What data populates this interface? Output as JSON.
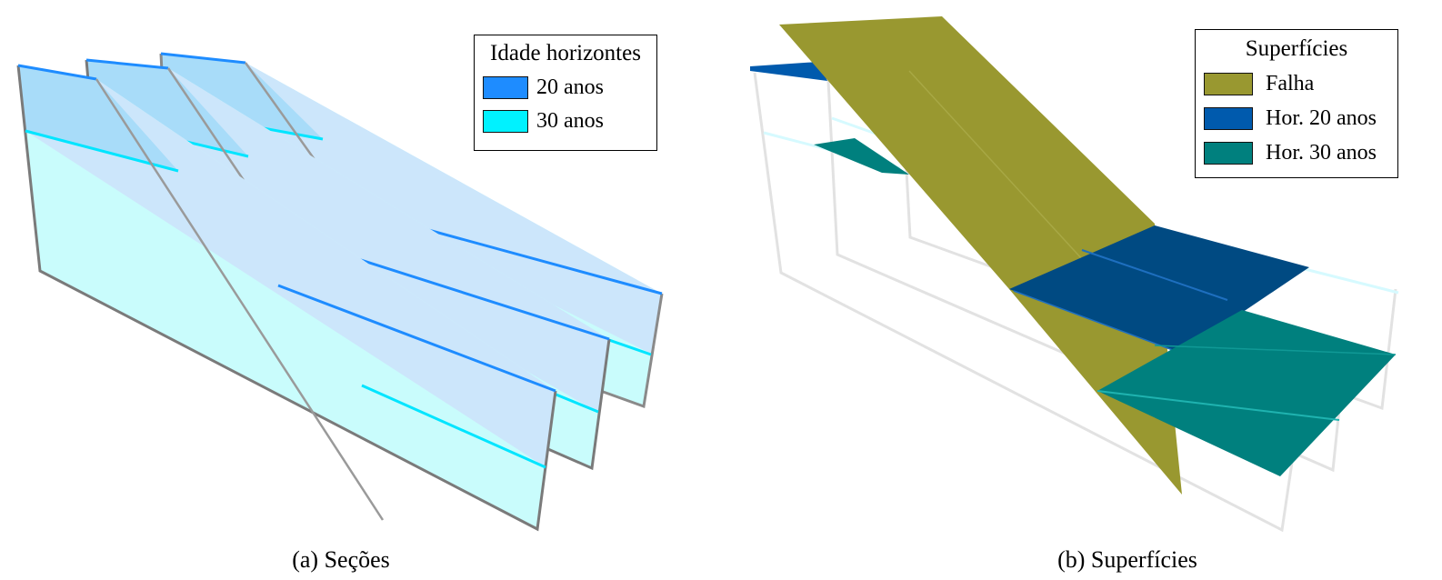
{
  "panel_a": {
    "caption": "(a) Seções",
    "legend": {
      "title": "Idade horizontes",
      "items": [
        {
          "label": "20 anos",
          "color": "#1e8cff"
        },
        {
          "label": "30 anos",
          "color": "#00f2ff"
        }
      ]
    }
  },
  "panel_b": {
    "caption": "(b) Superfícies",
    "legend": {
      "title": "Superfícies",
      "items": [
        {
          "label": "Falha",
          "color": "#999830"
        },
        {
          "label": "Hor. 20 anos",
          "color": "#005aad"
        },
        {
          "label": "Hor. 30 anos",
          "color": "#00807e"
        }
      ]
    }
  }
}
